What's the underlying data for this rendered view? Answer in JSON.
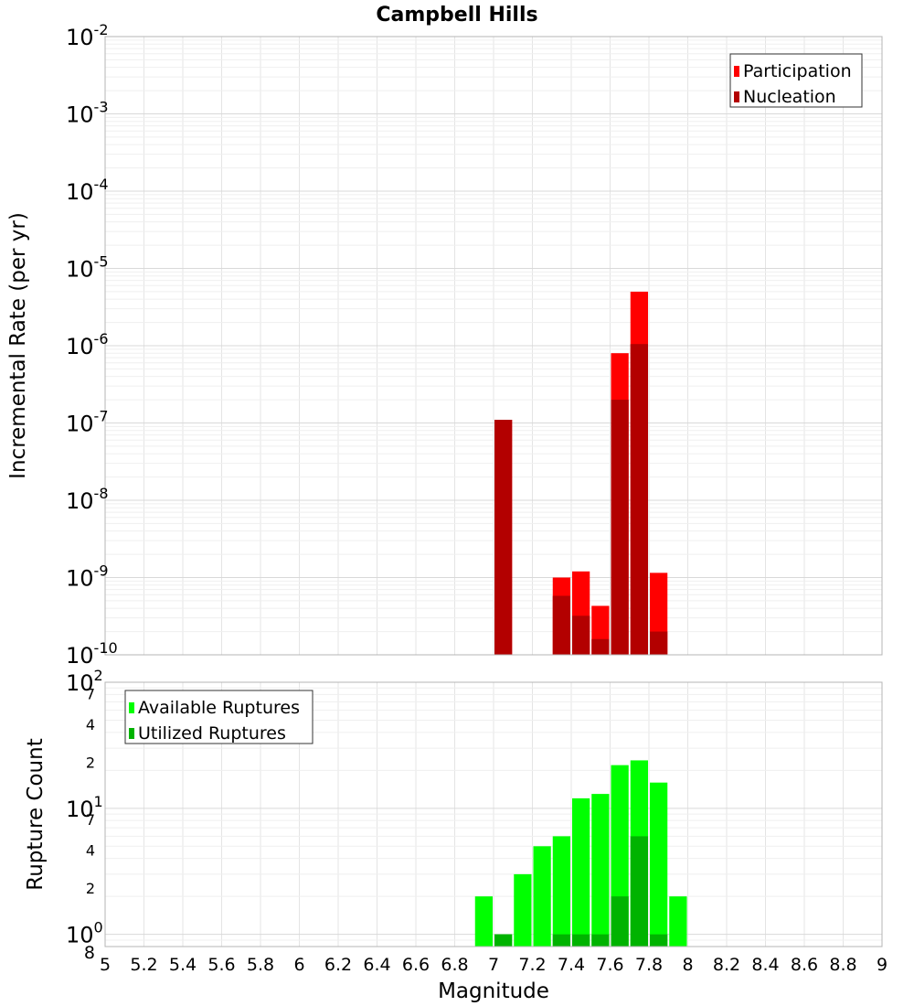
{
  "chart_data": [
    {
      "type": "bar",
      "title": "Campbell Hills",
      "xlabel": "Magnitude",
      "ylabel": "Incremental Rate (per yr)",
      "yscale": "log",
      "ylim": [
        1e-10,
        0.01
      ],
      "xlim": [
        5,
        9
      ],
      "bar_width": 0.1,
      "grid": true,
      "legend_position": "top-right",
      "y_ticks": [
        {
          "base": "10",
          "exp": "-10",
          "value": 1e-10
        },
        {
          "base": "10",
          "exp": "-9",
          "value": 1e-09
        },
        {
          "base": "10",
          "exp": "-8",
          "value": 1e-08
        },
        {
          "base": "10",
          "exp": "-7",
          "value": 1e-07
        },
        {
          "base": "10",
          "exp": "-6",
          "value": 1e-06
        },
        {
          "base": "10",
          "exp": "-5",
          "value": 1e-05
        },
        {
          "base": "10",
          "exp": "-4",
          "value": 0.0001
        },
        {
          "base": "10",
          "exp": "-3",
          "value": 0.001
        },
        {
          "base": "10",
          "exp": "-2",
          "value": 0.01
        }
      ],
      "series": [
        {
          "name": "Participation",
          "color": "#ff0000",
          "x": [
            7.05,
            7.35,
            7.45,
            7.55,
            7.65,
            7.75,
            7.85
          ],
          "values": [
            1.1e-07,
            1e-09,
            1.2e-09,
            4.3e-10,
            8e-07,
            5e-06,
            1.15e-09
          ]
        },
        {
          "name": "Nucleation",
          "color": "#b30000",
          "x": [
            7.05,
            7.35,
            7.45,
            7.55,
            7.65,
            7.75,
            7.85
          ],
          "values": [
            1.1e-07,
            5.8e-10,
            3.2e-10,
            1.6e-10,
            2e-07,
            1.05e-06,
            2e-10
          ]
        }
      ]
    },
    {
      "type": "bar",
      "xlabel": "Magnitude",
      "ylabel": "Rupture Count",
      "yscale": "log",
      "ylim": [
        0.8,
        100
      ],
      "xlim": [
        5,
        9
      ],
      "bar_width": 0.1,
      "grid": true,
      "legend_position": "top-left",
      "x_ticks": [
        "5",
        "5.2",
        "5.4",
        "5.6",
        "5.8",
        "6",
        "6.2",
        "6.4",
        "6.6",
        "6.8",
        "7",
        "7.2",
        "7.4",
        "7.6",
        "7.8",
        "8",
        "8.2",
        "8.4",
        "8.6",
        "8.8",
        "9"
      ],
      "y_major_ticks": [
        {
          "base": "10",
          "exp": "0",
          "value": 1
        },
        {
          "base": "10",
          "exp": "1",
          "value": 10
        },
        {
          "base": "10",
          "exp": "2",
          "value": 100
        }
      ],
      "y_minor_ticks": [
        {
          "label": "8",
          "value": 0.8
        },
        {
          "label": "2",
          "value": 2
        },
        {
          "label": "4",
          "value": 4
        },
        {
          "label": "7",
          "value": 7
        },
        {
          "label": "2",
          "value": 20
        },
        {
          "label": "4",
          "value": 40
        },
        {
          "label": "7",
          "value": 70
        }
      ],
      "series": [
        {
          "name": "Available Ruptures",
          "color": "#00ff00",
          "x": [
            6.95,
            7.05,
            7.15,
            7.25,
            7.35,
            7.45,
            7.55,
            7.65,
            7.75,
            7.85,
            7.95
          ],
          "values": [
            2,
            1,
            3,
            5,
            6,
            12,
            13,
            22,
            24,
            16,
            2
          ]
        },
        {
          "name": "Utilized Ruptures",
          "color": "#00b300",
          "x": [
            7.05,
            7.35,
            7.45,
            7.55,
            7.65,
            7.75,
            7.85
          ],
          "values": [
            1,
            1,
            1,
            1,
            2,
            6,
            1
          ]
        }
      ]
    }
  ]
}
